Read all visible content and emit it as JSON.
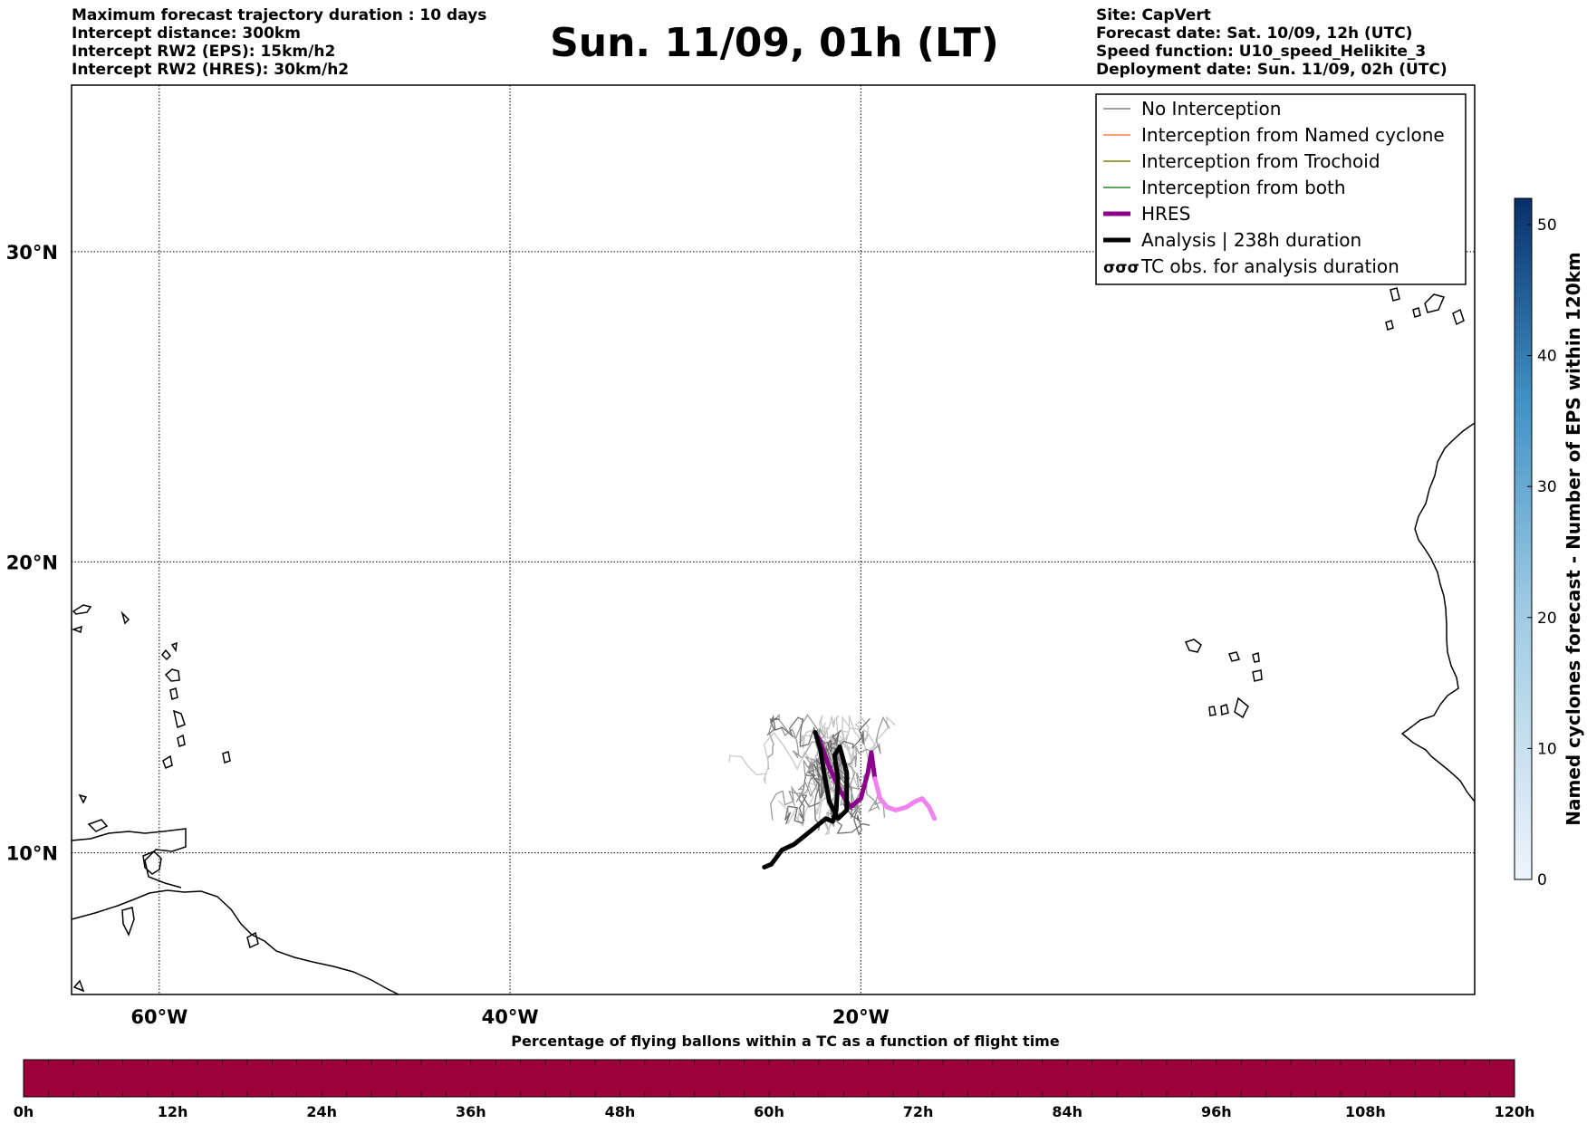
{
  "header": {
    "title": "Sun. 11/09, 01h (LT)",
    "left_info": [
      "Maximum forecast trajectory duration : 10 days",
      "Intercept distance: 300km",
      "Intercept RW2 (EPS):  15km/h2",
      "Intercept RW2 (HRES): 30km/h2"
    ],
    "right_info": [
      "Site: CapVert",
      "Forecast date: Sat. 10/09, 12h (UTC)",
      "Speed function: U10_speed_Helikite_3",
      "Deployment date: Sun. 11/09, 02h (UTC)"
    ]
  },
  "map": {
    "lon_range": [
      -65,
      15
    ],
    "lat_range": [
      5,
      35
    ],
    "lon_ticks": [
      {
        "value": -60,
        "label": "60°W"
      },
      {
        "value": -40,
        "label": "40°W"
      },
      {
        "value": -20,
        "label": "20°W"
      }
    ],
    "lat_ticks": [
      {
        "value": 10,
        "label": "10°N"
      },
      {
        "value": 20,
        "label": "20°N"
      },
      {
        "value": 30,
        "label": "30°N"
      }
    ],
    "grid": true,
    "analysis_track": [
      [
        -25.5,
        9.5
      ],
      [
        -25.1,
        9.6
      ],
      [
        -24.5,
        10.1
      ],
      [
        -23.8,
        10.3
      ],
      [
        -23.2,
        10.6
      ],
      [
        -22.6,
        10.9
      ],
      [
        -22.0,
        11.2
      ],
      [
        -21.6,
        11.1
      ],
      [
        -21.4,
        11.5
      ],
      [
        -21.3,
        12.6
      ],
      [
        -21.5,
        13.4
      ],
      [
        -21.2,
        13.7
      ],
      [
        -20.8,
        12.8
      ],
      [
        -20.8,
        11.5
      ],
      [
        -21.3,
        11.2
      ],
      [
        -21.8,
        11.8
      ],
      [
        -22.1,
        12.8
      ],
      [
        -22.3,
        13.6
      ],
      [
        -22.6,
        14.2
      ]
    ],
    "hres_track": [
      [
        -22.4,
        14.0
      ],
      [
        -21.8,
        13.0
      ],
      [
        -21.2,
        12.2
      ],
      [
        -20.6,
        11.6
      ],
      [
        -20.0,
        11.9
      ],
      [
        -19.6,
        12.8
      ],
      [
        -19.4,
        13.5
      ],
      [
        -19.2,
        12.6
      ],
      [
        -18.9,
        11.9
      ],
      [
        -18.5,
        11.6
      ],
      [
        -18.0,
        11.5
      ],
      [
        -17.4,
        11.6
      ],
      [
        -16.9,
        11.8
      ],
      [
        -16.5,
        11.9
      ],
      [
        -16.1,
        11.6
      ],
      [
        -15.8,
        11.2
      ]
    ],
    "hres_colors": [
      "#8b008b",
      "#ee82ee"
    ],
    "eps_seeds": [
      3,
      7,
      11,
      13,
      17,
      19,
      23,
      29,
      31,
      37,
      41,
      43,
      47,
      53,
      59,
      61,
      67,
      71,
      73,
      79,
      83,
      89,
      97,
      101,
      103,
      107,
      109,
      113,
      127,
      131,
      137,
      139,
      149,
      151
    ],
    "colors": {
      "no_interception": "#808080",
      "named_cyclone": "#ff7f50",
      "trochoid": "#808000",
      "both": "#228b22",
      "hres": "#8b008b",
      "analysis": "#000000"
    }
  },
  "legend": {
    "entries": [
      {
        "label": "No Interception",
        "style": "thin",
        "color": "#808080"
      },
      {
        "label": "Interception from Named cyclone",
        "style": "thin",
        "color": "#ff7f50"
      },
      {
        "label": "Interception from Trochoid",
        "style": "thin",
        "color": "#808000"
      },
      {
        "label": "Interception from both",
        "style": "thin",
        "color": "#228b22"
      },
      {
        "label": "HRES",
        "style": "thick",
        "color": "#8b008b"
      },
      {
        "label": "Analysis | 238h duration",
        "style": "thick",
        "color": "#000000"
      },
      {
        "label": "TC obs. for analysis duration",
        "style": "symbol",
        "color": "#000000"
      }
    ]
  },
  "colorbar_right": {
    "label": "Named cyclones forecast - Number of EPS within 120km",
    "ticks": [
      "0",
      "10",
      "20",
      "30",
      "40",
      "50"
    ],
    "range": [
      0,
      52
    ],
    "colors": [
      "#eef4fb",
      "#08306b"
    ]
  },
  "colorbar_bottom": {
    "title": "Percentage of flying ballons within a TC as a function of flight time",
    "ticks": [
      "0h",
      "12h",
      "24h",
      "36h",
      "48h",
      "60h",
      "72h",
      "84h",
      "96h",
      "108h",
      "120h"
    ],
    "fill_color": "#9e003a"
  }
}
